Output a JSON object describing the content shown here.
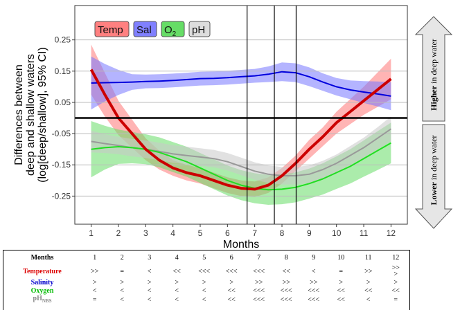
{
  "chart_data": {
    "type": "line",
    "ylabel": "Differences between deep and shallow waters (log[deep/shallow], 95% CI)",
    "ylabel_lines": [
      "Differences between",
      "deep and shallow waters",
      "(log[deep/shallow], 95% CI)"
    ],
    "xlabel": "Months",
    "x_ticks": [
      "1",
      "2",
      "3",
      "4",
      "5",
      "6",
      "7",
      "8",
      "9",
      "10",
      "11",
      "12"
    ],
    "y_ticks": [
      "0.25",
      "0.15",
      "0.05",
      "-0.05",
      "-0.15",
      "-0.25"
    ],
    "xlim": [
      0.4,
      12.6
    ],
    "ylim": [
      -0.34,
      0.36
    ],
    "grid": true,
    "zero_line": 0,
    "vertical_lines": [
      6.72,
      7.72,
      8.52
    ],
    "legend_position": "top-left",
    "series": [
      {
        "name": "Temp",
        "color": "#cc0000",
        "band_color": "#ff7777",
        "x": [
          1,
          1.5,
          2,
          2.5,
          3,
          3.5,
          4,
          4.5,
          5,
          5.5,
          6,
          6.5,
          7,
          7.5,
          8,
          8.5,
          9,
          9.5,
          10,
          10.5,
          11,
          11.5,
          12
        ],
        "y": [
          0.155,
          0.075,
          0.0,
          -0.05,
          -0.1,
          -0.135,
          -0.16,
          -0.175,
          -0.185,
          -0.2,
          -0.215,
          -0.225,
          -0.228,
          -0.215,
          -0.185,
          -0.145,
          -0.1,
          -0.06,
          -0.015,
          0.02,
          0.055,
          0.09,
          0.125
        ],
        "band": [
          0.08,
          0.07,
          0.055,
          0.045,
          0.035,
          0.03,
          0.025,
          0.025,
          0.025,
          0.025,
          0.025,
          0.025,
          0.025,
          0.025,
          0.025,
          0.025,
          0.03,
          0.03,
          0.035,
          0.04,
          0.045,
          0.055,
          0.065
        ]
      },
      {
        "name": "Sal",
        "color": "#0000dd",
        "band_color": "#7777ff",
        "x": [
          1,
          1.5,
          2,
          2.5,
          3,
          3.5,
          4,
          4.5,
          5,
          5.5,
          6,
          6.5,
          7,
          7.5,
          8,
          8.5,
          9,
          9.5,
          10,
          10.5,
          11,
          11.5,
          12
        ],
        "y": [
          0.112,
          0.113,
          0.114,
          0.115,
          0.117,
          0.118,
          0.12,
          0.123,
          0.126,
          0.127,
          0.129,
          0.132,
          0.135,
          0.14,
          0.148,
          0.145,
          0.132,
          0.115,
          0.1,
          0.09,
          0.083,
          0.077,
          0.07
        ],
        "band": [
          0.085,
          0.06,
          0.04,
          0.025,
          0.022,
          0.022,
          0.022,
          0.022,
          0.022,
          0.022,
          0.022,
          0.022,
          0.022,
          0.025,
          0.03,
          0.03,
          0.03,
          0.028,
          0.028,
          0.03,
          0.035,
          0.04,
          0.045
        ]
      },
      {
        "name": "O2",
        "color": "#22dd22",
        "band_color": "#66dd66",
        "x": [
          1,
          1.5,
          2,
          2.5,
          3,
          3.5,
          4,
          4.5,
          5,
          5.5,
          6,
          6.5,
          7,
          7.5,
          8,
          8.5,
          9,
          9.5,
          10,
          10.5,
          11,
          11.5,
          12
        ],
        "y": [
          -0.1,
          -0.095,
          -0.092,
          -0.095,
          -0.1,
          -0.11,
          -0.125,
          -0.14,
          -0.16,
          -0.18,
          -0.2,
          -0.215,
          -0.225,
          -0.23,
          -0.228,
          -0.222,
          -0.21,
          -0.195,
          -0.175,
          -0.155,
          -0.13,
          -0.105,
          -0.08
        ],
        "band": [
          0.09,
          0.07,
          0.055,
          0.05,
          0.048,
          0.048,
          0.048,
          0.048,
          0.048,
          0.048,
          0.048,
          0.048,
          0.048,
          0.048,
          0.048,
          0.048,
          0.048,
          0.05,
          0.052,
          0.055,
          0.058,
          0.062,
          0.065
        ]
      },
      {
        "name": "pH",
        "color": "#999999",
        "band_color": "#c8c8c8",
        "x": [
          1,
          1.5,
          2,
          2.5,
          3,
          3.5,
          4,
          4.5,
          5,
          5.5,
          6,
          6.5,
          7,
          7.5,
          8,
          8.5,
          9,
          9.5,
          10,
          10.5,
          11,
          11.5,
          12
        ],
        "y": [
          -0.075,
          -0.082,
          -0.088,
          -0.095,
          -0.1,
          -0.107,
          -0.115,
          -0.12,
          -0.125,
          -0.13,
          -0.14,
          -0.155,
          -0.17,
          -0.18,
          -0.185,
          -0.185,
          -0.18,
          -0.165,
          -0.145,
          -0.12,
          -0.095,
          -0.065,
          -0.035
        ],
        "band": [
          0.035,
          0.03,
          0.028,
          0.028,
          0.028,
          0.028,
          0.028,
          0.028,
          0.028,
          0.028,
          0.028,
          0.028,
          0.028,
          0.028,
          0.028,
          0.028,
          0.028,
          0.028,
          0.028,
          0.03,
          0.032,
          0.035,
          0.04
        ]
      }
    ]
  },
  "legend": [
    {
      "label": "Temp",
      "fill": "#ff8080"
    },
    {
      "label": "Sal",
      "fill": "#8080ff"
    },
    {
      "label": "O",
      "sub": "2",
      "fill": "#66dd66"
    },
    {
      "label": "pH",
      "fill": "#dddddd"
    }
  ],
  "arrows": {
    "higher_bold": "Higher",
    "higher_rest": " in deep water",
    "lower_bold": "Lower",
    "lower_rest": " in deep water",
    "fill": "#e6e6e6"
  },
  "summary_table": {
    "header": "Months",
    "months": [
      "1",
      "2",
      "3",
      "4",
      "5",
      "6",
      "7",
      "8",
      "9",
      "10",
      "11",
      "12"
    ],
    "rows": [
      {
        "label": "Temperature",
        "color": "#dd0000",
        "cells": [
          ">>",
          "=",
          "<",
          "<<",
          "<<<",
          "<<<",
          "<<<",
          "<<",
          "<",
          "=",
          ">>",
          ">>"
        ],
        "extra_last": ">"
      },
      {
        "label": "Salinity",
        "color": "#0000cc",
        "cells": [
          ">",
          ">",
          ">",
          ">",
          ">",
          ">",
          ">>",
          ">>",
          ">>",
          ">",
          ">",
          ">"
        ]
      },
      {
        "label": "Oxygen",
        "color": "#00bb00",
        "cells": [
          "<",
          "<",
          "<",
          "<",
          "<",
          "<<",
          "<<<",
          "<<<",
          "<<<",
          "<<",
          "<<",
          "<<"
        ]
      },
      {
        "label": "pH",
        "sub": "NBS",
        "color": "#888888",
        "cells": [
          "=",
          "<",
          "<",
          "<",
          "<",
          "<<",
          "<<<",
          "<<<",
          "<<<",
          "<<",
          "<",
          "="
        ]
      }
    ]
  }
}
